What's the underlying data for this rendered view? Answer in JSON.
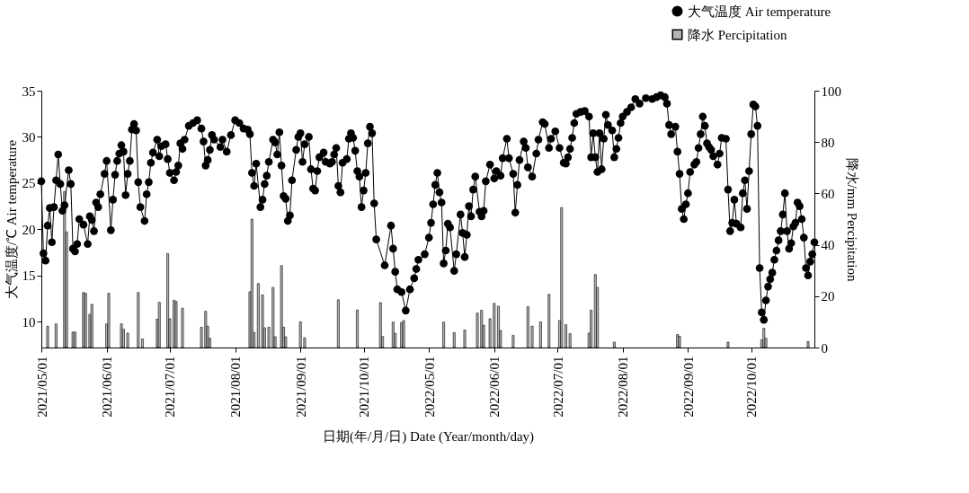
{
  "chart_data": {
    "type": "line",
    "xlabel": "日期(年/月/日) Date (Year/month/day)",
    "ylabel": "大气温度/℃ Air temperature",
    "y2label": "降水/mm Percipitation",
    "categories": [
      "2021/05/01",
      null,
      null,
      null,
      null,
      null,
      null,
      null,
      null,
      null,
      null,
      null,
      null,
      null,
      null,
      null,
      null,
      null,
      null,
      null,
      null,
      null,
      null,
      null,
      null,
      null,
      null,
      null,
      null,
      null,
      null,
      "2021/06/01",
      null,
      null,
      null,
      null,
      null,
      null,
      null,
      null,
      null,
      null,
      null,
      null,
      null,
      null,
      null,
      null,
      null,
      null,
      null,
      null,
      null,
      null,
      null,
      null,
      null,
      null,
      null,
      null,
      null,
      "2021/07/01",
      null,
      null,
      null,
      null,
      null,
      null,
      null,
      null,
      null,
      null,
      null,
      null,
      null,
      null,
      null,
      null,
      null,
      null,
      null,
      null,
      null,
      null,
      null,
      null,
      null,
      null,
      null,
      null,
      null,
      null,
      "2021/08/01",
      null,
      null,
      null,
      null,
      null,
      null,
      null,
      null,
      null,
      null,
      null,
      null,
      null,
      null,
      null,
      null,
      null,
      null,
      null,
      null,
      null,
      null,
      null,
      null,
      null,
      null,
      null,
      null,
      null,
      null,
      "2021/09/01",
      null,
      null,
      null,
      null,
      null,
      null,
      null,
      null,
      null,
      null,
      null,
      null,
      null,
      null,
      null,
      null,
      null,
      null,
      null,
      null,
      null,
      null,
      null,
      null,
      null,
      null,
      null,
      null,
      null,
      "2021/10/01",
      null,
      null,
      null,
      null,
      null,
      null,
      null,
      null,
      null,
      null,
      null,
      null,
      null,
      null,
      null,
      null,
      null,
      null,
      null,
      null,
      null,
      null,
      null,
      null,
      null,
      null,
      null,
      null,
      null,
      null,
      "2022/05/01",
      null,
      null,
      null,
      null,
      null,
      null,
      null,
      null,
      null,
      null,
      null,
      null,
      null,
      null,
      null,
      null,
      null,
      null,
      null,
      null,
      null,
      null,
      null,
      null,
      null,
      null,
      null,
      null,
      null,
      null,
      "2022/06/01",
      null,
      null,
      null,
      null,
      null,
      null,
      null,
      null,
      null,
      null,
      null,
      null,
      null,
      null,
      null,
      null,
      null,
      null,
      null,
      null,
      null,
      null,
      null,
      null,
      null,
      null,
      null,
      null,
      null,
      "2022/07/01",
      null,
      null,
      null,
      null,
      null,
      null,
      null,
      null,
      null,
      null,
      null,
      null,
      null,
      null,
      null,
      null,
      null,
      null,
      null,
      null,
      null,
      null,
      null,
      null,
      null,
      null,
      null,
      null,
      null,
      null,
      "2022/08/01",
      null,
      null,
      null,
      null,
      null,
      null,
      null,
      null,
      null,
      null,
      null,
      null,
      null,
      null,
      null,
      null,
      null,
      null,
      null,
      null,
      null,
      null,
      null,
      null,
      null,
      null,
      null,
      null,
      null,
      null,
      "2022/09/01",
      null,
      null,
      null,
      null,
      null,
      null,
      null,
      null,
      null,
      null,
      null,
      null,
      null,
      null,
      null,
      null,
      null,
      null,
      null,
      null,
      null,
      null,
      null,
      null,
      null,
      null,
      null,
      null,
      null,
      "2022/10/01",
      null,
      null,
      null,
      null,
      null,
      null,
      null,
      null,
      null,
      null,
      null,
      null,
      null,
      null,
      null,
      null,
      null,
      null,
      null,
      null,
      null,
      null,
      null,
      null,
      null,
      null,
      null,
      null,
      null,
      null
    ],
    "ylim": [
      7.2,
      35
    ],
    "yticks": [
      10,
      15,
      20,
      25,
      30,
      35
    ],
    "y2lim": [
      0,
      100
    ],
    "y2ticks": [
      0,
      20,
      40,
      60,
      80,
      100
    ],
    "grid": false,
    "legend": "top right",
    "marker": "circle",
    "line_style": "solid",
    "series": [
      {
        "name": "大气温度 Air temperature",
        "color": "#000000",
        "values": [
          25.2,
          17.4,
          16.6,
          20.4,
          22.3,
          18.6,
          22.4,
          25.3,
          28.1,
          24.9,
          22.0,
          22.6,
          null,
          26.4,
          24.9,
          17.9,
          17.6,
          18.4,
          21.1,
          null,
          20.5,
          null,
          18.4,
          21.4,
          21.0,
          19.8,
          22.9,
          22.4,
          23.8,
          null,
          26.0,
          27.4,
          null,
          19.9,
          23.2,
          25.9,
          27.4,
          28.2,
          29.1,
          28.4,
          23.7,
          26.0,
          27.4,
          30.8,
          31.4,
          30.7,
          25.1,
          22.4,
          null,
          20.9,
          23.8,
          25.1,
          27.2,
          28.3,
          null,
          29.7,
          27.9,
          29.0,
          null,
          29.2,
          27.6,
          26.1,
          null,
          25.3,
          26.2,
          26.9,
          29.3,
          28.7,
          29.7,
          null,
          31.2,
          null,
          31.5,
          null,
          31.8,
          null,
          30.9,
          29.5,
          26.9,
          27.5,
          28.6,
          30.2,
          29.7,
          null,
          null,
          28.9,
          29.7,
          null,
          28.4,
          null,
          30.2,
          null,
          31.8,
          null,
          31.5,
          null,
          30.9,
          null,
          30.8,
          30.3,
          26.1,
          24.7,
          27.1,
          null,
          22.4,
          23.2,
          24.9,
          25.8,
          27.3,
          null,
          29.7,
          29.4,
          28.1,
          30.5,
          26.9,
          23.6,
          23.3,
          20.9,
          21.5,
          25.3,
          null,
          28.6,
          30.0,
          30.4,
          27.3,
          29.2,
          null,
          30.0,
          26.5,
          24.4,
          24.2,
          26.3,
          27.8,
          null,
          28.3,
          27.3,
          null,
          27.1,
          27.3,
          28.1,
          28.8,
          24.7,
          24.0,
          27.2,
          null,
          27.6,
          29.8,
          30.4,
          29.9,
          28.5,
          26.3,
          25.7,
          22.4,
          24.2,
          26.1,
          29.3,
          31.1,
          30.4,
          22.8,
          18.9,
          null,
          null,
          null,
          16.1,
          null,
          null,
          20.4,
          17.9,
          15.4,
          13.5,
          null,
          13.2,
          null,
          11.2,
          null,
          13.5,
          null,
          14.7,
          15.7,
          16.7,
          null,
          null,
          17.3,
          null,
          19.1,
          20.7,
          22.7,
          24.8,
          26.1,
          24.0,
          22.9,
          16.3,
          17.7,
          20.6,
          20.2,
          null,
          15.5,
          17.3,
          null,
          21.6,
          19.6,
          17.0,
          19.4,
          22.5,
          21.4,
          24.3,
          25.7,
          null,
          21.9,
          21.4,
          22.0,
          25.2,
          null,
          27.0,
          null,
          25.5,
          26.3,
          null,
          25.8,
          27.7,
          null,
          29.8,
          27.7,
          null,
          26.0,
          21.8,
          24.8,
          27.5,
          null,
          29.5,
          28.8,
          26.7,
          null,
          25.7,
          null,
          28.2,
          29.7,
          null,
          31.6,
          31.4,
          null,
          28.8,
          29.8,
          null,
          30.6,
          null,
          28.8,
          null,
          27.2,
          27.1,
          27.8,
          28.7,
          29.9,
          31.5,
          32.5,
          null,
          32.7,
          null,
          32.8,
          null,
          32.2,
          27.8,
          30.4,
          27.8,
          26.2,
          30.4,
          26.5,
          29.8,
          32.4,
          31.3,
          null,
          30.7,
          27.8,
          28.7,
          29.9,
          31.5,
          32.2,
          null,
          32.7,
          null,
          33.2,
          null,
          34.1,
          null,
          33.6,
          null,
          null,
          34.2,
          null,
          null,
          34.1,
          null,
          34.3,
          null,
          34.5,
          null,
          34.3,
          33.6,
          31.3,
          30.3,
          null,
          31.1,
          28.4,
          26.0,
          22.2,
          21.1,
          22.7,
          23.9,
          26.2,
          null,
          27.0,
          27.3,
          28.8,
          30.3,
          32.2,
          31.2,
          29.3,
          28.9,
          28.6,
          27.9,
          null,
          27.0,
          28.2,
          29.9,
          null,
          29.8,
          24.3,
          19.8,
          20.7,
          23.2,
          20.6,
          null,
          20.2,
          23.9,
          25.3,
          22.2,
          26.3,
          30.3,
          33.5,
          33.3,
          31.2,
          15.8,
          11.0,
          10.2,
          12.3,
          13.8,
          14.6,
          15.3,
          16.7,
          17.7,
          18.8,
          19.8,
          21.6,
          23.9,
          19.8,
          17.9,
          18.5,
          20.3,
          20.7,
          22.9,
          22.5,
          21.1,
          19.1,
          15.8,
          15.0,
          16.5,
          17.3,
          18.6
        ]
      },
      {
        "name": "降水 Percipitation",
        "type": "bar",
        "axis": "y2",
        "color": "#b4b4b4",
        "values": [
          null,
          null,
          null,
          8.3,
          null,
          null,
          null,
          9.2,
          null,
          null,
          null,
          60.7,
          45,
          null,
          null,
          6,
          6,
          null,
          null,
          null,
          21.4,
          21.1,
          null,
          12.9,
          16.8,
          null,
          null,
          null,
          null,
          null,
          null,
          9.2,
          21.1,
          null,
          null,
          null,
          null,
          null,
          9.2,
          7.1,
          null,
          5.6,
          null,
          null,
          null,
          null,
          21.4,
          null,
          3.3,
          null,
          null,
          null,
          null,
          null,
          null,
          11,
          17.6,
          null,
          null,
          null,
          36.6,
          11.2,
          null,
          18.4,
          17.9,
          null,
          null,
          15.3,
          null,
          null,
          null,
          null,
          null,
          null,
          null,
          null,
          7.9,
          null,
          14.1,
          8.3,
          3.6,
          null,
          null,
          null,
          null,
          null,
          null,
          null,
          null,
          null,
          null,
          null,
          null,
          null,
          null,
          null,
          null,
          null,
          null,
          21.7,
          50,
          5.9,
          null,
          24.9,
          null,
          20.5,
          7.7,
          null,
          7.9,
          null,
          23.4,
          4.2,
          null,
          null,
          31.9,
          7.9,
          4.2,
          null,
          null,
          null,
          null,
          null,
          null,
          10,
          null,
          3.8,
          null,
          null,
          null,
          null,
          null,
          null,
          null,
          null,
          null,
          null,
          null,
          null,
          null,
          null,
          null,
          18.6,
          null,
          null,
          null,
          null,
          null,
          null,
          null,
          null,
          14.6,
          null,
          null,
          null,
          null,
          null,
          null,
          null,
          null,
          null,
          null,
          17.5,
          4.3,
          null,
          null,
          null,
          null,
          9.9,
          5.5,
          null,
          null,
          9.7,
          10.5,
          null,
          null,
          null,
          null,
          null,
          null,
          null,
          null,
          null,
          null,
          null,
          null,
          null,
          null,
          null,
          null,
          null,
          null,
          9.9,
          null,
          null,
          null,
          null,
          5.8,
          null,
          null,
          null,
          null,
          6.8,
          null,
          null,
          null,
          null,
          null,
          13.4,
          null,
          14.5,
          8.7,
          null,
          null,
          11.2,
          null,
          17.2,
          null,
          16.1,
          6.6,
          null,
          null,
          null,
          null,
          null,
          4.7,
          null,
          null,
          null,
          null,
          null,
          null,
          15.9,
          null,
          8.3,
          null,
          null,
          null,
          10,
          null,
          null,
          null,
          20.7,
          null,
          null,
          null,
          null,
          10.5,
          54.5,
          null,
          8.9,
          null,
          5.4,
          null,
          null,
          null,
          null,
          null,
          null,
          null,
          null,
          5.6,
          14.5,
          null,
          28.4,
          23.4,
          null,
          null,
          null,
          null,
          null,
          null,
          null,
          2.1,
          null,
          null,
          null,
          null,
          null,
          null,
          null,
          null,
          null,
          null,
          null,
          null,
          null,
          null,
          null,
          null,
          null,
          null,
          null,
          null,
          null,
          null,
          null,
          null,
          null,
          null,
          null,
          null,
          null,
          5.1,
          4.4,
          null,
          null,
          null,
          null,
          null,
          null,
          null,
          null,
          null,
          null,
          null,
          null,
          null,
          null,
          null,
          null,
          null,
          null,
          null,
          null,
          null,
          null,
          2.1,
          null,
          null,
          null,
          null,
          null,
          null,
          null,
          null,
          null,
          null,
          null,
          null,
          null,
          null,
          null,
          3,
          7.5,
          3.6,
          null,
          null,
          null,
          null,
          null,
          null,
          null,
          null,
          null,
          null,
          null,
          null,
          null,
          null,
          null,
          null,
          null,
          null,
          null,
          2.3,
          null,
          null,
          null
        ]
      }
    ]
  }
}
